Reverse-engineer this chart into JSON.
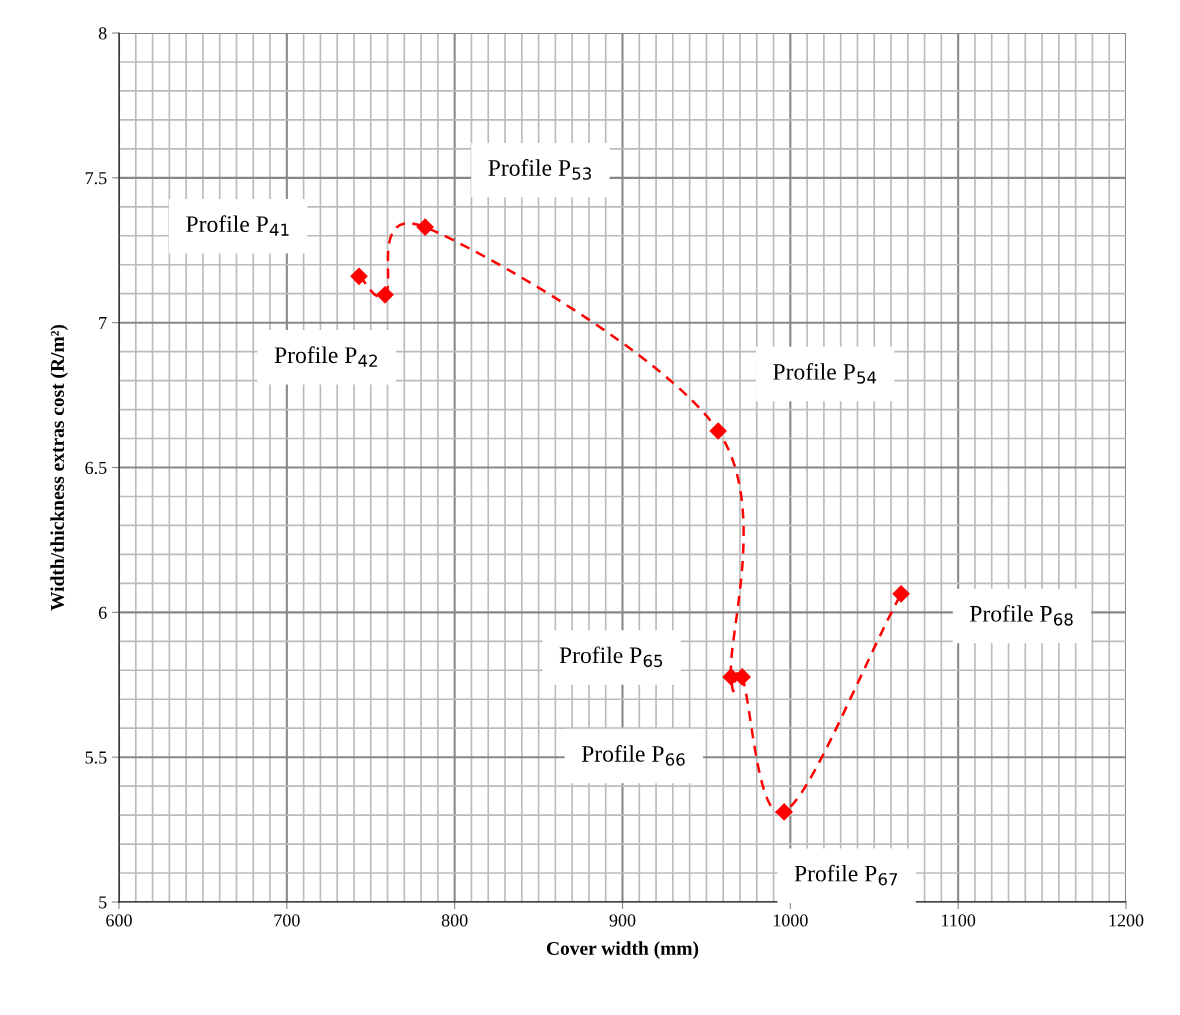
{
  "chart_data": {
    "type": "line",
    "xlabel": "Cover width (mm)",
    "ylabel": "Width/thickness extras cost (R/m²)",
    "x": [
      743,
      758.5,
      782.4,
      957,
      964.7,
      971.3,
      996.3,
      1066
    ],
    "series": [
      {
        "color": "#ff0000",
        "values": [
          7.16,
          7.096,
          7.33,
          6.626,
          5.777,
          5.777,
          5.311,
          6.064
        ]
      }
    ],
    "xlim": [
      600,
      1200
    ],
    "xticks": [
      600,
      700,
      800,
      900,
      1000,
      1100,
      1200
    ],
    "ylim": [
      5,
      8
    ],
    "yticks": [
      5,
      5.5,
      6,
      6.5,
      7,
      7.5,
      8
    ],
    "grid": true,
    "marker": "diamond",
    "line_style": "dashed",
    "annotations": [
      "Profile P$_{41}$",
      "Profile P$_{42}$",
      "Profile P$_{53}$",
      "Profile P$_{54}$",
      "Profile P$_{65}$",
      "Profile P$_{66}$",
      "Profile P$_{67}$",
      "Profile P$_{68}$"
    ]
  }
}
